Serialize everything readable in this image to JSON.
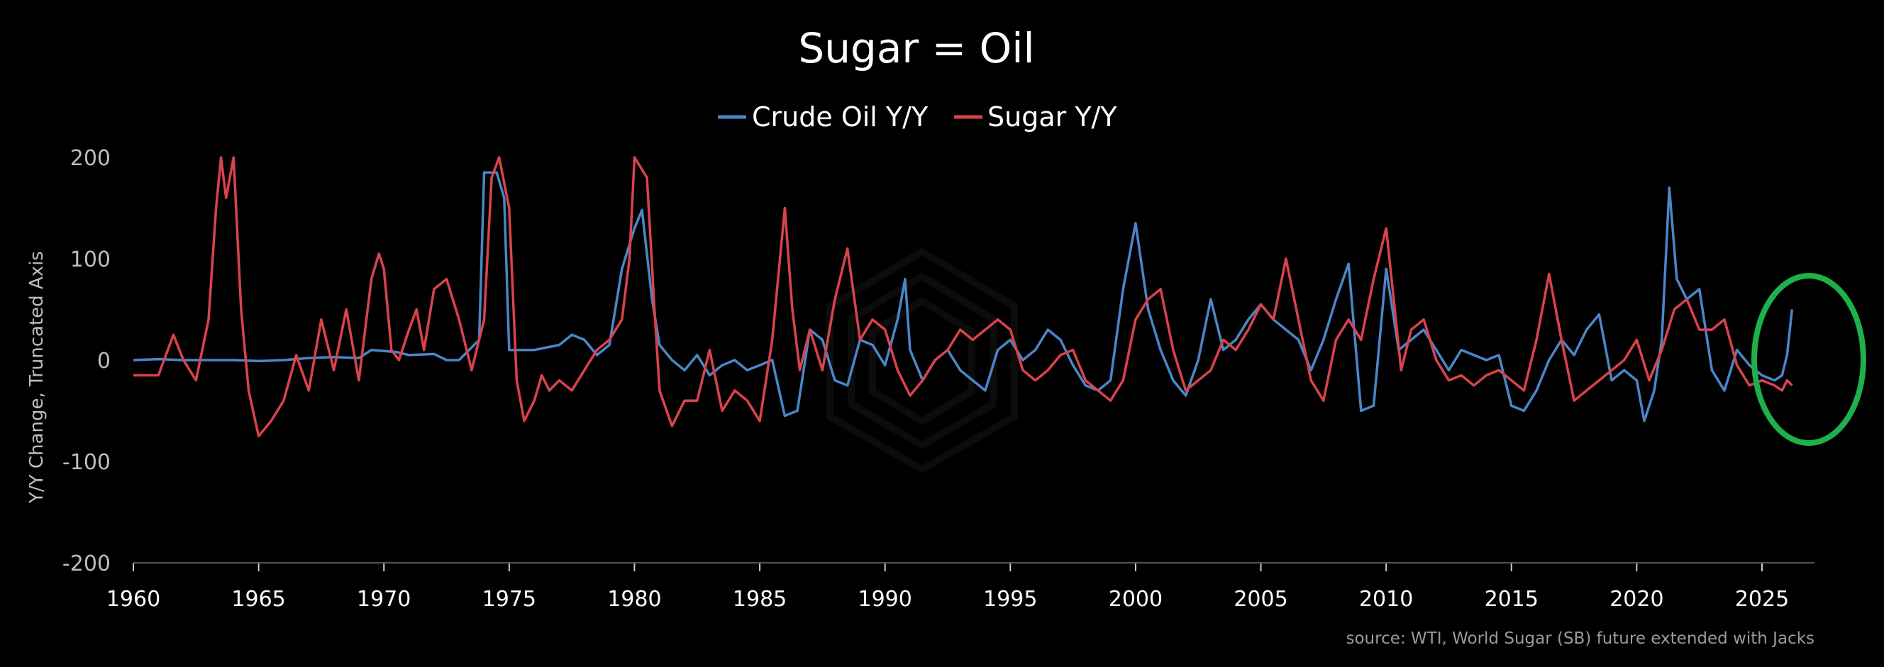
{
  "chart_data": {
    "type": "line",
    "title": "Sugar = Oil",
    "ylabel": "Y/Y Change, Truncated Axis",
    "xlabel": "",
    "xlim": [
      1960,
      2026.5
    ],
    "ylim": [
      -200,
      200
    ],
    "x_ticks": [
      "1960",
      "1965",
      "1970",
      "1975",
      "1980",
      "1985",
      "1990",
      "1995",
      "2000",
      "2005",
      "2010",
      "2015",
      "2020",
      "2025"
    ],
    "y_ticks": [
      "200",
      "100",
      "0",
      "-100",
      "-200"
    ],
    "legend_position": "top-center",
    "grid": false,
    "source": "source: WTI, World Sugar (SB) future extended with Jacks",
    "annotation": "green ellipse highlighting 2024-2026 period",
    "series": [
      {
        "name": "Crude Oil Y/Y",
        "color": "#4a86c8",
        "points": [
          [
            1960.0,
            0
          ],
          [
            1961.0,
            1
          ],
          [
            1962.0,
            0
          ],
          [
            1963.0,
            0
          ],
          [
            1964.0,
            0
          ],
          [
            1965.0,
            -1
          ],
          [
            1966.0,
            0
          ],
          [
            1967.0,
            2
          ],
          [
            1968.0,
            3
          ],
          [
            1969.0,
            2
          ],
          [
            1969.5,
            10
          ],
          [
            1970.5,
            8
          ],
          [
            1971.0,
            5
          ],
          [
            1972.0,
            6
          ],
          [
            1972.5,
            0
          ],
          [
            1973.0,
            0
          ],
          [
            1973.8,
            20
          ],
          [
            1974.0,
            185
          ],
          [
            1974.5,
            185
          ],
          [
            1974.8,
            160
          ],
          [
            1975.0,
            10
          ],
          [
            1976.0,
            10
          ],
          [
            1977.0,
            15
          ],
          [
            1977.5,
            25
          ],
          [
            1978.0,
            20
          ],
          [
            1978.5,
            5
          ],
          [
            1979.0,
            15
          ],
          [
            1979.5,
            90
          ],
          [
            1980.0,
            130
          ],
          [
            1980.3,
            148
          ],
          [
            1980.7,
            60
          ],
          [
            1981.0,
            15
          ],
          [
            1981.5,
            0
          ],
          [
            1982.0,
            -10
          ],
          [
            1982.5,
            5
          ],
          [
            1983.0,
            -15
          ],
          [
            1983.5,
            -5
          ],
          [
            1984.0,
            0
          ],
          [
            1984.5,
            -10
          ],
          [
            1985.0,
            -5
          ],
          [
            1985.5,
            0
          ],
          [
            1986.0,
            -55
          ],
          [
            1986.5,
            -50
          ],
          [
            1987.0,
            30
          ],
          [
            1987.5,
            20
          ],
          [
            1988.0,
            -20
          ],
          [
            1988.5,
            -25
          ],
          [
            1989.0,
            20
          ],
          [
            1989.5,
            15
          ],
          [
            1990.0,
            -5
          ],
          [
            1990.5,
            40
          ],
          [
            1990.8,
            80
          ],
          [
            1991.0,
            10
          ],
          [
            1991.5,
            -20
          ],
          [
            1992.0,
            0
          ],
          [
            1992.5,
            10
          ],
          [
            1993.0,
            -10
          ],
          [
            1993.5,
            -20
          ],
          [
            1994.0,
            -30
          ],
          [
            1994.5,
            10
          ],
          [
            1995.0,
            20
          ],
          [
            1995.5,
            0
          ],
          [
            1996.0,
            10
          ],
          [
            1996.5,
            30
          ],
          [
            1997.0,
            20
          ],
          [
            1997.5,
            -5
          ],
          [
            1998.0,
            -25
          ],
          [
            1998.5,
            -30
          ],
          [
            1999.0,
            -20
          ],
          [
            1999.5,
            70
          ],
          [
            2000.0,
            135
          ],
          [
            2000.5,
            50
          ],
          [
            2001.0,
            10
          ],
          [
            2001.5,
            -20
          ],
          [
            2002.0,
            -35
          ],
          [
            2002.5,
            0
          ],
          [
            2003.0,
            60
          ],
          [
            2003.5,
            10
          ],
          [
            2004.0,
            20
          ],
          [
            2004.5,
            40
          ],
          [
            2005.0,
            55
          ],
          [
            2005.5,
            40
          ],
          [
            2006.0,
            30
          ],
          [
            2006.5,
            20
          ],
          [
            2007.0,
            -10
          ],
          [
            2007.5,
            20
          ],
          [
            2008.0,
            60
          ],
          [
            2008.5,
            95
          ],
          [
            2009.0,
            -50
          ],
          [
            2009.5,
            -45
          ],
          [
            2010.0,
            90
          ],
          [
            2010.5,
            10
          ],
          [
            2011.0,
            20
          ],
          [
            2011.5,
            30
          ],
          [
            2012.0,
            10
          ],
          [
            2012.5,
            -10
          ],
          [
            2013.0,
            10
          ],
          [
            2013.5,
            5
          ],
          [
            2014.0,
            0
          ],
          [
            2014.5,
            5
          ],
          [
            2015.0,
            -45
          ],
          [
            2015.5,
            -50
          ],
          [
            2016.0,
            -30
          ],
          [
            2016.5,
            0
          ],
          [
            2017.0,
            20
          ],
          [
            2017.5,
            5
          ],
          [
            2018.0,
            30
          ],
          [
            2018.5,
            45
          ],
          [
            2019.0,
            -20
          ],
          [
            2019.5,
            -10
          ],
          [
            2020.0,
            -20
          ],
          [
            2020.3,
            -60
          ],
          [
            2020.7,
            -30
          ],
          [
            2021.0,
            20
          ],
          [
            2021.3,
            170
          ],
          [
            2021.6,
            80
          ],
          [
            2022.0,
            60
          ],
          [
            2022.5,
            70
          ],
          [
            2023.0,
            -10
          ],
          [
            2023.5,
            -30
          ],
          [
            2024.0,
            10
          ],
          [
            2024.5,
            -5
          ],
          [
            2025.0,
            -15
          ],
          [
            2025.5,
            -20
          ],
          [
            2025.8,
            -15
          ],
          [
            2026.0,
            5
          ],
          [
            2026.2,
            50
          ]
        ]
      },
      {
        "name": "Sugar Y/Y",
        "color": "#d9434b",
        "points": [
          [
            1960.0,
            -15
          ],
          [
            1961.0,
            -15
          ],
          [
            1961.3,
            5
          ],
          [
            1961.6,
            25
          ],
          [
            1962.0,
            0
          ],
          [
            1962.5,
            -20
          ],
          [
            1963.0,
            40
          ],
          [
            1963.3,
            150
          ],
          [
            1963.5,
            200
          ],
          [
            1963.7,
            160
          ],
          [
            1964.0,
            200
          ],
          [
            1964.3,
            50
          ],
          [
            1964.6,
            -30
          ],
          [
            1965.0,
            -75
          ],
          [
            1965.5,
            -60
          ],
          [
            1966.0,
            -40
          ],
          [
            1966.5,
            5
          ],
          [
            1967.0,
            -30
          ],
          [
            1967.5,
            40
          ],
          [
            1968.0,
            -10
          ],
          [
            1968.5,
            50
          ],
          [
            1969.0,
            -20
          ],
          [
            1969.5,
            80
          ],
          [
            1969.8,
            105
          ],
          [
            1970.0,
            90
          ],
          [
            1970.3,
            10
          ],
          [
            1970.6,
            0
          ],
          [
            1971.0,
            30
          ],
          [
            1971.3,
            50
          ],
          [
            1971.6,
            10
          ],
          [
            1972.0,
            70
          ],
          [
            1972.5,
            80
          ],
          [
            1973.0,
            40
          ],
          [
            1973.5,
            -10
          ],
          [
            1974.0,
            40
          ],
          [
            1974.3,
            180
          ],
          [
            1974.6,
            200
          ],
          [
            1975.0,
            150
          ],
          [
            1975.3,
            -20
          ],
          [
            1975.6,
            -60
          ],
          [
            1976.0,
            -40
          ],
          [
            1976.3,
            -15
          ],
          [
            1976.6,
            -30
          ],
          [
            1977.0,
            -20
          ],
          [
            1977.5,
            -30
          ],
          [
            1978.0,
            -10
          ],
          [
            1978.5,
            10
          ],
          [
            1979.0,
            20
          ],
          [
            1979.5,
            40
          ],
          [
            1979.8,
            100
          ],
          [
            1980.0,
            200
          ],
          [
            1980.5,
            180
          ],
          [
            1980.8,
            50
          ],
          [
            1981.0,
            -30
          ],
          [
            1981.5,
            -65
          ],
          [
            1982.0,
            -40
          ],
          [
            1982.5,
            -40
          ],
          [
            1983.0,
            10
          ],
          [
            1983.5,
            -50
          ],
          [
            1984.0,
            -30
          ],
          [
            1984.5,
            -40
          ],
          [
            1985.0,
            -60
          ],
          [
            1985.5,
            20
          ],
          [
            1986.0,
            150
          ],
          [
            1986.3,
            50
          ],
          [
            1986.6,
            -10
          ],
          [
            1987.0,
            30
          ],
          [
            1987.5,
            -10
          ],
          [
            1988.0,
            60
          ],
          [
            1988.5,
            110
          ],
          [
            1989.0,
            20
          ],
          [
            1989.5,
            40
          ],
          [
            1990.0,
            30
          ],
          [
            1990.5,
            -10
          ],
          [
            1991.0,
            -35
          ],
          [
            1991.5,
            -20
          ],
          [
            1992.0,
            0
          ],
          [
            1992.5,
            10
          ],
          [
            1993.0,
            30
          ],
          [
            1993.5,
            20
          ],
          [
            1994.0,
            30
          ],
          [
            1994.5,
            40
          ],
          [
            1995.0,
            30
          ],
          [
            1995.5,
            -10
          ],
          [
            1996.0,
            -20
          ],
          [
            1996.5,
            -10
          ],
          [
            1997.0,
            5
          ],
          [
            1997.5,
            10
          ],
          [
            1998.0,
            -20
          ],
          [
            1998.5,
            -30
          ],
          [
            1999.0,
            -40
          ],
          [
            1999.5,
            -20
          ],
          [
            2000.0,
            40
          ],
          [
            2000.5,
            60
          ],
          [
            2001.0,
            70
          ],
          [
            2001.5,
            10
          ],
          [
            2002.0,
            -30
          ],
          [
            2002.5,
            -20
          ],
          [
            2003.0,
            -10
          ],
          [
            2003.5,
            20
          ],
          [
            2004.0,
            10
          ],
          [
            2004.5,
            30
          ],
          [
            2005.0,
            55
          ],
          [
            2005.5,
            40
          ],
          [
            2006.0,
            100
          ],
          [
            2006.5,
            40
          ],
          [
            2007.0,
            -20
          ],
          [
            2007.5,
            -40
          ],
          [
            2008.0,
            20
          ],
          [
            2008.5,
            40
          ],
          [
            2009.0,
            20
          ],
          [
            2009.5,
            80
          ],
          [
            2010.0,
            130
          ],
          [
            2010.3,
            60
          ],
          [
            2010.6,
            -10
          ],
          [
            2011.0,
            30
          ],
          [
            2011.5,
            40
          ],
          [
            2012.0,
            0
          ],
          [
            2012.5,
            -20
          ],
          [
            2013.0,
            -15
          ],
          [
            2013.5,
            -25
          ],
          [
            2014.0,
            -15
          ],
          [
            2014.5,
            -10
          ],
          [
            2015.0,
            -20
          ],
          [
            2015.5,
            -30
          ],
          [
            2016.0,
            20
          ],
          [
            2016.5,
            85
          ],
          [
            2017.0,
            20
          ],
          [
            2017.5,
            -40
          ],
          [
            2018.0,
            -30
          ],
          [
            2018.5,
            -20
          ],
          [
            2019.0,
            -10
          ],
          [
            2019.5,
            0
          ],
          [
            2020.0,
            20
          ],
          [
            2020.5,
            -20
          ],
          [
            2021.0,
            10
          ],
          [
            2021.5,
            50
          ],
          [
            2022.0,
            60
          ],
          [
            2022.5,
            30
          ],
          [
            2023.0,
            30
          ],
          [
            2023.5,
            40
          ],
          [
            2024.0,
            -5
          ],
          [
            2024.5,
            -25
          ],
          [
            2025.0,
            -20
          ],
          [
            2025.5,
            -25
          ],
          [
            2025.8,
            -30
          ],
          [
            2026.0,
            -20
          ],
          [
            2026.2,
            -25
          ]
        ]
      }
    ]
  }
}
